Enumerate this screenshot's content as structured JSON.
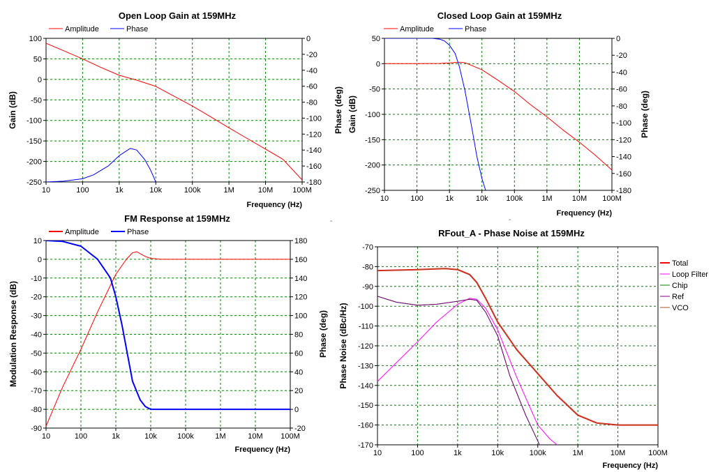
{
  "stray_marks": [
    "-",
    "-"
  ],
  "chart_data": [
    {
      "type": "line",
      "title": "Open Loop Gain at  159MHz",
      "xlabel": "Frequency (Hz)",
      "ylabel": "Gain (dB)",
      "y2label": "Phase (deg)",
      "x_scale": "log",
      "xlim": [
        10,
        100000000
      ],
      "x_ticks": [
        10,
        100,
        1000,
        10000,
        100000,
        1000000,
        10000000,
        100000000
      ],
      "x_tick_labels": [
        "10",
        "100",
        "1k",
        "10k",
        "100k",
        "1M",
        "10M",
        "100M"
      ],
      "ylim": [
        -250,
        100
      ],
      "y_ticks": [
        -250,
        -200,
        -150,
        -100,
        -50,
        0,
        50,
        100
      ],
      "y_tick_labels": [
        "-250",
        "-200",
        "-150",
        "-100",
        "-50",
        "0",
        "50",
        "100"
      ],
      "y2lim": [
        -180,
        0
      ],
      "y2_ticks": [
        -180,
        -160,
        -140,
        -120,
        -100,
        -80,
        -60,
        -40,
        -20,
        0
      ],
      "y2_tick_labels": [
        "-180",
        "-160",
        "-140",
        "-120",
        "-100",
        "-80",
        "-60",
        "-40",
        "-20",
        "0"
      ],
      "grid": true,
      "legend_position": "top-left",
      "series": [
        {
          "name": "Amplitude",
          "axis": "left",
          "color": "#ff0000",
          "line_width": 1,
          "x": [
            10,
            30,
            100,
            300,
            1000,
            3000,
            10000,
            30000,
            100000,
            300000,
            1000000,
            3000000,
            10000000,
            30000000,
            100000000
          ],
          "y": [
            88,
            70,
            50,
            30,
            10,
            -2,
            -17,
            -40,
            -65,
            -90,
            -118,
            -143,
            -170,
            -195,
            -245
          ]
        },
        {
          "name": "Phase",
          "axis": "right",
          "color": "#0000ff",
          "line_width": 1,
          "x": [
            10,
            30,
            100,
            200,
            500,
            1000,
            2000,
            3000,
            5000,
            7000,
            10000
          ],
          "y": [
            -180,
            -179,
            -176,
            -171,
            -160,
            -147,
            -138,
            -140,
            -152,
            -164,
            -180
          ]
        }
      ]
    },
    {
      "type": "line",
      "title": "Closed Loop Gain at  159MHz",
      "xlabel": "Frequency (Hz)",
      "ylabel": "Gain (dB)",
      "y2label": "Phase (deg)",
      "x_scale": "log",
      "xlim": [
        10,
        100000000
      ],
      "x_ticks": [
        10,
        100,
        1000,
        10000,
        100000,
        1000000,
        10000000,
        100000000
      ],
      "x_tick_labels": [
        "10",
        "100",
        "1k",
        "10k",
        "100k",
        "1M",
        "10M",
        "100M"
      ],
      "ylim": [
        -250,
        50
      ],
      "y_ticks": [
        -250,
        -200,
        -150,
        -100,
        -50,
        0,
        50
      ],
      "y_tick_labels": [
        "-250",
        "-200",
        "-150",
        "-100",
        "-50",
        "0",
        "50"
      ],
      "y2lim": [
        -180,
        0
      ],
      "y2_ticks": [
        -180,
        -160,
        -140,
        -120,
        -100,
        -80,
        -60,
        -40,
        -20,
        0
      ],
      "y2_tick_labels": [
        "-180",
        "-160",
        "-140",
        "-120",
        "-100",
        "-80",
        "-60",
        "-40",
        "-20",
        "0"
      ],
      "grid": true,
      "legend_position": "top-left",
      "series": [
        {
          "name": "Amplitude",
          "axis": "left",
          "color": "#ff0000",
          "line_width": 1,
          "x": [
            10,
            100,
            500,
            1000,
            2000,
            3000,
            5000,
            10000,
            30000,
            100000,
            300000,
            1000000,
            3000000,
            10000000,
            30000000,
            100000000
          ],
          "y": [
            0,
            0,
            0.5,
            1.5,
            3,
            2,
            -4,
            -12,
            -32,
            -55,
            -80,
            -105,
            -130,
            -155,
            -180,
            -210
          ]
        },
        {
          "name": "Phase",
          "axis": "right",
          "color": "#0000ff",
          "line_width": 1,
          "x": [
            10,
            100,
            300,
            500,
            700,
            1000,
            1500,
            2000,
            3000,
            5000,
            7000,
            10000,
            13000
          ],
          "y": [
            0,
            0,
            0,
            -1,
            -3,
            -8,
            -18,
            -33,
            -62,
            -108,
            -140,
            -166,
            -180
          ]
        }
      ]
    },
    {
      "type": "line",
      "title": "FM Response at  159MHz",
      "xlabel": "Frequency (Hz)",
      "ylabel": "Modulation Response (dB)",
      "y2label": "Phase (deg)",
      "x_scale": "log",
      "xlim": [
        10,
        100000000
      ],
      "x_ticks": [
        10,
        100,
        1000,
        10000,
        100000,
        1000000,
        10000000,
        100000000
      ],
      "x_tick_labels": [
        "10",
        "100",
        "1k",
        "10k",
        "100k",
        "1M",
        "10M",
        "100M"
      ],
      "ylim": [
        -90,
        10
      ],
      "y_ticks": [
        -90,
        -80,
        -70,
        -60,
        -50,
        -40,
        -30,
        -20,
        -10,
        0,
        10
      ],
      "y_tick_labels": [
        "-90",
        "-80",
        "-70",
        "-60",
        "-50",
        "-40",
        "-30",
        "-20",
        "-10",
        "0",
        "10"
      ],
      "y2lim": [
        -20,
        180
      ],
      "y2_ticks": [
        -20,
        0,
        20,
        40,
        60,
        80,
        100,
        120,
        140,
        160,
        180
      ],
      "y2_tick_labels": [
        "-20",
        "0",
        "20",
        "40",
        "60",
        "80",
        "100",
        "120",
        "140",
        "160",
        "180"
      ],
      "grid": true,
      "legend_position": "top-left",
      "series": [
        {
          "name": "Amplitude",
          "axis": "left",
          "color": "#ff0000",
          "line_width": 1,
          "x": [
            10,
            30,
            100,
            300,
            1000,
            2000,
            3000,
            4000,
            5000,
            7000,
            10000,
            20000,
            100000,
            100000000
          ],
          "y": [
            -89,
            -68,
            -48,
            -28,
            -8,
            0,
            3.5,
            4,
            3,
            1.5,
            0.5,
            0,
            0,
            0
          ]
        },
        {
          "name": "Phase",
          "axis": "right",
          "color": "#0000ff",
          "line_width": 2,
          "x": [
            10,
            30,
            100,
            300,
            700,
            1000,
            1500,
            2000,
            3000,
            5000,
            7000,
            10000,
            20000,
            100000000
          ],
          "y": [
            180,
            179,
            174,
            160,
            140,
            120,
            90,
            65,
            30,
            10,
            3,
            0,
            0,
            0
          ]
        }
      ]
    },
    {
      "type": "line",
      "title": "RFout_A - Phase Noise at  159MHz",
      "xlabel": "Frequency (Hz)",
      "ylabel": "Phase Noise (dBc/Hz)",
      "x_scale": "log",
      "xlim": [
        10,
        100000000
      ],
      "x_ticks": [
        10,
        100,
        1000,
        10000,
        100000,
        1000000,
        10000000,
        100000000
      ],
      "x_tick_labels": [
        "10",
        "100",
        "1k",
        "10k",
        "100k",
        "1M",
        "10M",
        "100M"
      ],
      "ylim": [
        -170,
        -70
      ],
      "y_ticks": [
        -170,
        -160,
        -150,
        -140,
        -130,
        -120,
        -110,
        -100,
        -90,
        -80,
        -70
      ],
      "y_tick_labels": [
        "-170",
        "-160",
        "-150",
        "-140",
        "-130",
        "-120",
        "-110",
        "-100",
        "-90",
        "-80",
        "-70"
      ],
      "grid": true,
      "legend_position": "right",
      "series": [
        {
          "name": "Total",
          "color": "#ff0000",
          "line_width": 2,
          "x": [
            10,
            100,
            500,
            1000,
            2000,
            3000,
            5000,
            10000,
            30000,
            100000,
            300000,
            1000000,
            3000000,
            10000000,
            100000000
          ],
          "y": [
            -82,
            -81.5,
            -81,
            -81.5,
            -84,
            -88,
            -96,
            -108,
            -122,
            -134,
            -145,
            -155,
            -159,
            -160,
            -160
          ]
        },
        {
          "name": "Loop Filter",
          "color": "#ff00ff",
          "line_width": 1,
          "x": [
            10,
            100,
            300,
            1000,
            2000,
            3000,
            5000,
            10000,
            30000,
            100000,
            200000,
            400000
          ],
          "y": [
            -138,
            -118,
            -108,
            -99,
            -96,
            -96.5,
            -101,
            -112,
            -136,
            -160,
            -167,
            -172
          ]
        },
        {
          "name": "Chip",
          "color": "#008000",
          "line_width": 1,
          "x": [
            10,
            30,
            100,
            300,
            1000,
            2000,
            3000,
            5000,
            10000,
            20000,
            50000,
            100000,
            120000
          ],
          "y": [
            -95,
            -98,
            -99.5,
            -99,
            -97.5,
            -96.5,
            -97,
            -103,
            -115,
            -135,
            -155,
            -168,
            -172
          ]
        },
        {
          "name": "Ref",
          "color": "#800080",
          "line_width": 1,
          "x": [
            10,
            30,
            100,
            300,
            1000,
            2000,
            3000,
            5000,
            10000,
            20000,
            50000,
            100000,
            120000
          ],
          "y": [
            -95,
            -98,
            -99.5,
            -99,
            -97.5,
            -96.5,
            -97,
            -103,
            -115,
            -135,
            -155,
            -168,
            -172
          ]
        },
        {
          "name": "VCO",
          "color": "#a0522d",
          "line_width": 1,
          "x": [
            10,
            100,
            500,
            1000,
            2000,
            3000,
            5000,
            10000,
            30000,
            100000,
            300000,
            1000000,
            3000000,
            10000000,
            100000000
          ],
          "y": [
            -82,
            -81.5,
            -81,
            -81.5,
            -84,
            -88,
            -96,
            -108,
            -122,
            -134,
            -145,
            -155,
            -159,
            -160,
            -160
          ]
        }
      ]
    }
  ]
}
